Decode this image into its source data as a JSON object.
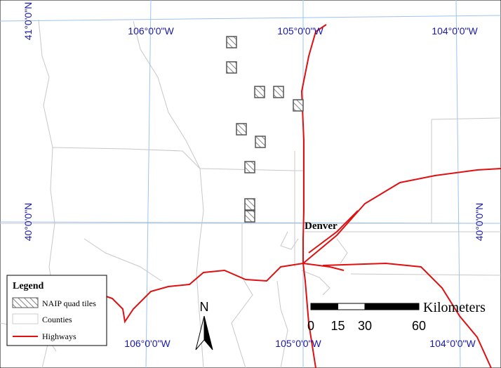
{
  "graticule_labels": {
    "top": [
      "106°0'0\"W",
      "105°0'0\"W",
      "104°0'0\"W"
    ],
    "bottom": [
      "106°0'0\"W",
      "105°0'0\"W",
      "104°0'0\"W"
    ],
    "left": [
      "41°0'0\"N",
      "40°0'0\"N"
    ],
    "right": [
      "40°0'0\"N"
    ]
  },
  "places": [
    "Denver"
  ],
  "legend": {
    "title": "Legend",
    "items": [
      "NAIP quad tiles",
      "Counties",
      "Highways"
    ]
  },
  "north_arrow": "N",
  "scale_bar": {
    "ticks": [
      0,
      15,
      30,
      60
    ],
    "unit": "Kilometers"
  }
}
